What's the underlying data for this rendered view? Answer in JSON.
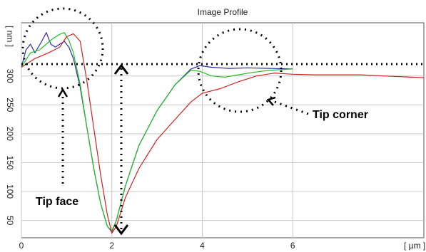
{
  "chart_data": {
    "type": "line",
    "title": "Image Profile",
    "xlabel": "[ µm ]",
    "ylabel": "[ nm ]",
    "xlim": [
      0,
      8.9
    ],
    "ylim": [
      20,
      392
    ],
    "x_ticks": [
      0,
      2,
      4,
      6
    ],
    "y_ticks": [
      50,
      100,
      150,
      200,
      250,
      300
    ],
    "grid": true,
    "series": [
      {
        "color": "#2b2ba8",
        "x": [
          0,
          0.1,
          0.2,
          0.3,
          0.45,
          0.55,
          0.65,
          0.75,
          0.85,
          0.95,
          1.05,
          1.15,
          1.3,
          1.45,
          1.6,
          1.75,
          1.9,
          2.0,
          2.1,
          2.3,
          2.6,
          3.0,
          3.4,
          3.75,
          3.95,
          4.2,
          4.6,
          5.0,
          5.5,
          6.0
        ],
        "y": [
          315,
          345,
          355,
          340,
          360,
          375,
          355,
          350,
          355,
          360,
          350,
          330,
          280,
          210,
          140,
          80,
          40,
          30,
          50,
          110,
          180,
          240,
          285,
          312,
          318,
          315,
          313,
          314,
          313,
          312
        ]
      },
      {
        "color": "#22c022",
        "x": [
          0,
          0.2,
          0.4,
          0.55,
          0.7,
          0.85,
          0.95,
          1.05,
          1.15,
          1.3,
          1.45,
          1.6,
          1.75,
          1.9,
          2.0,
          2.1,
          2.3,
          2.6,
          3.0,
          3.4,
          3.75,
          3.95,
          4.2,
          4.5,
          4.8,
          5.1,
          5.5,
          6.0
        ],
        "y": [
          315,
          340,
          345,
          355,
          365,
          372,
          375,
          362,
          340,
          285,
          210,
          140,
          80,
          40,
          32,
          50,
          110,
          180,
          240,
          285,
          310,
          308,
          300,
          298,
          302,
          306,
          310,
          312
        ]
      },
      {
        "color": "#d42020",
        "x": [
          0,
          0.3,
          0.6,
          0.85,
          1.0,
          1.15,
          1.3,
          1.45,
          1.6,
          1.75,
          1.9,
          2.0,
          2.1,
          2.3,
          2.6,
          3.0,
          3.4,
          3.75,
          4.0,
          4.4,
          4.8,
          5.2,
          5.6,
          6.0,
          6.5,
          7.0,
          7.5,
          8.0,
          8.9
        ],
        "y": [
          315,
          330,
          340,
          350,
          368,
          373,
          360,
          290,
          210,
          130,
          60,
          28,
          40,
          90,
          140,
          190,
          225,
          255,
          270,
          278,
          290,
          300,
          305,
          303,
          302,
          302,
          302,
          300,
          297
        ]
      }
    ],
    "annotations": [
      {
        "text": "Tip face"
      },
      {
        "text": "Tip corner"
      }
    ]
  }
}
